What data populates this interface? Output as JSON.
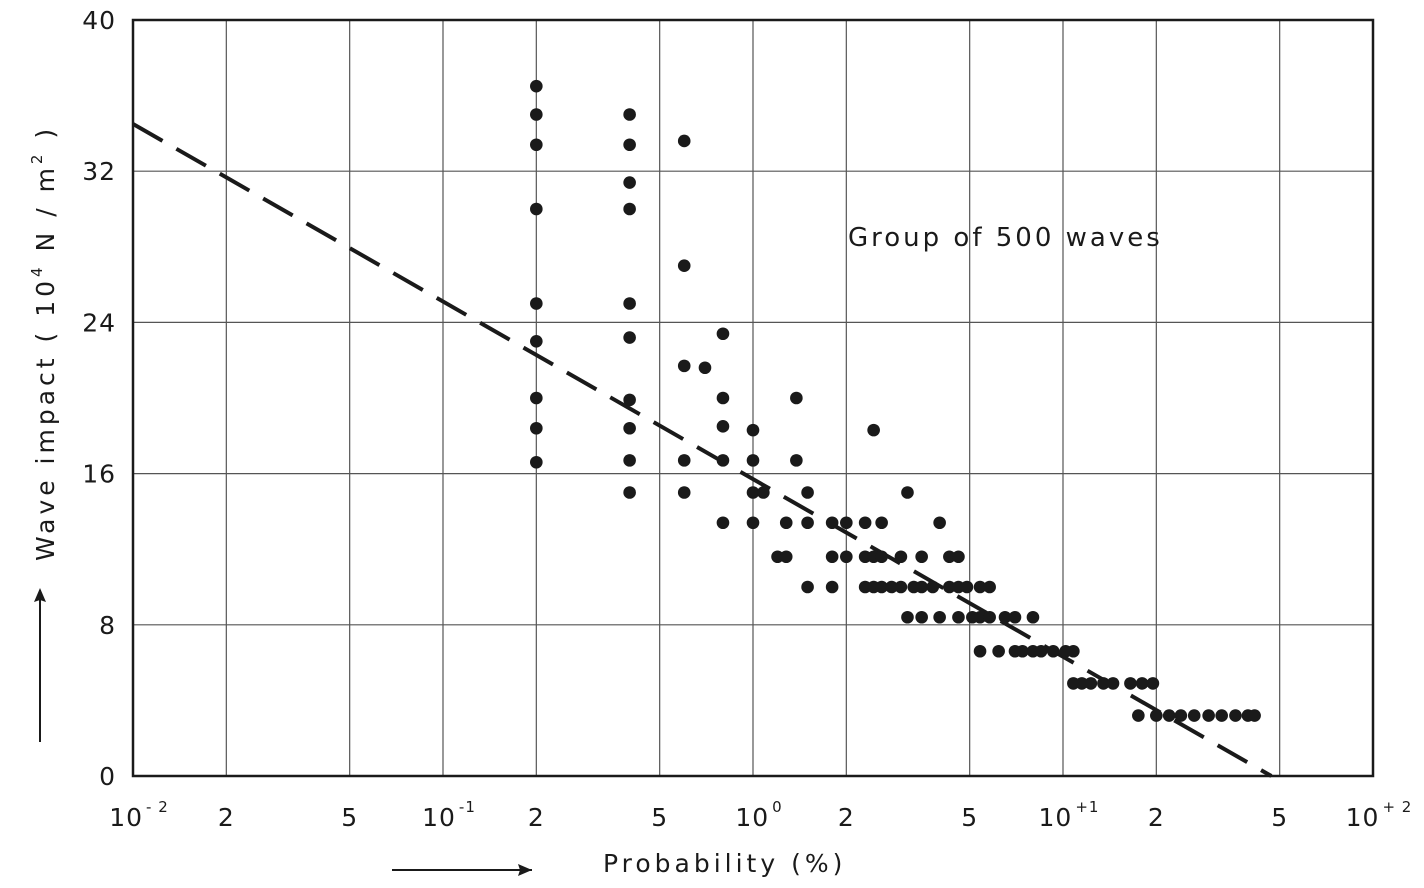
{
  "chart_data": {
    "type": "scatter",
    "title": "",
    "annotation": "Group of 500 waves",
    "xlabel": "Probability (%)",
    "ylabel": "Wave impact (10⁴ N/m²)",
    "ylabel_parts": {
      "prefix": "Wave impact ( 10",
      "exp": "4",
      "mid": " N / m",
      "exp2": "2",
      "suffix": " )"
    },
    "x_scale": "log",
    "xlim": [
      0.01,
      100
    ],
    "ylim": [
      0,
      40
    ],
    "grid": true,
    "y_ticks": [
      {
        "value": 0,
        "label": "0"
      },
      {
        "value": 8,
        "label": "8"
      },
      {
        "value": 16,
        "label": "16"
      },
      {
        "value": 24,
        "label": "24"
      },
      {
        "value": 32,
        "label": "32"
      },
      {
        "value": 40,
        "label": "40"
      }
    ],
    "x_ticks": [
      {
        "value": 0.01,
        "base": "10",
        "exp": "- 2"
      },
      {
        "value": 0.02,
        "base": "2",
        "exp": ""
      },
      {
        "value": 0.05,
        "base": "5",
        "exp": ""
      },
      {
        "value": 0.1,
        "base": "10",
        "exp": "-1"
      },
      {
        "value": 0.2,
        "base": "2",
        "exp": ""
      },
      {
        "value": 0.5,
        "base": "5",
        "exp": ""
      },
      {
        "value": 1,
        "base": "10",
        "exp": "0"
      },
      {
        "value": 2,
        "base": "2",
        "exp": ""
      },
      {
        "value": 5,
        "base": "5",
        "exp": ""
      },
      {
        "value": 10,
        "base": "10",
        "exp": "+1"
      },
      {
        "value": 20,
        "base": "2",
        "exp": ""
      },
      {
        "value": 50,
        "base": "5",
        "exp": ""
      },
      {
        "value": 100,
        "base": "10",
        "exp": "+ 2"
      }
    ],
    "trend_line": {
      "style": "dashed",
      "from": [
        0.01,
        34.5
      ],
      "to": [
        47,
        0
      ]
    },
    "series": [
      {
        "points": [
          [
            0.2,
            36.5
          ],
          [
            0.2,
            35.0
          ],
          [
            0.2,
            33.4
          ],
          [
            0.2,
            30.0
          ],
          [
            0.2,
            25.0
          ],
          [
            0.2,
            23.0
          ],
          [
            0.2,
            20.0
          ],
          [
            0.2,
            18.4
          ],
          [
            0.2,
            16.6
          ],
          [
            0.4,
            35.0
          ],
          [
            0.4,
            33.4
          ],
          [
            0.4,
            31.4
          ],
          [
            0.4,
            30.0
          ],
          [
            0.4,
            25.0
          ],
          [
            0.4,
            23.2
          ],
          [
            0.4,
            19.9
          ],
          [
            0.4,
            18.4
          ],
          [
            0.4,
            16.7
          ],
          [
            0.4,
            15.0
          ],
          [
            0.6,
            33.6
          ],
          [
            0.6,
            27.0
          ],
          [
            0.6,
            21.7
          ],
          [
            0.6,
            16.7
          ],
          [
            0.6,
            15.0
          ],
          [
            0.7,
            21.6
          ],
          [
            0.8,
            23.4
          ],
          [
            0.8,
            20.0
          ],
          [
            0.8,
            18.5
          ],
          [
            0.8,
            16.7
          ],
          [
            0.8,
            13.4
          ],
          [
            1.0,
            18.3
          ],
          [
            1.0,
            16.7
          ],
          [
            1.0,
            15.0
          ],
          [
            1.0,
            13.4
          ],
          [
            1.08,
            15.0
          ],
          [
            1.2,
            11.6
          ],
          [
            1.28,
            11.6
          ],
          [
            1.28,
            13.4
          ],
          [
            1.38,
            20.0
          ],
          [
            1.38,
            16.7
          ],
          [
            1.5,
            15.0
          ],
          [
            1.5,
            13.4
          ],
          [
            1.5,
            10.0
          ],
          [
            1.8,
            13.4
          ],
          [
            1.8,
            11.6
          ],
          [
            1.8,
            10.0
          ],
          [
            2.0,
            13.4
          ],
          [
            2.0,
            11.6
          ],
          [
            2.3,
            13.4
          ],
          [
            2.3,
            11.6
          ],
          [
            2.3,
            10.0
          ],
          [
            2.45,
            18.3
          ],
          [
            2.45,
            11.6
          ],
          [
            2.45,
            10.0
          ],
          [
            2.6,
            13.4
          ],
          [
            2.6,
            11.6
          ],
          [
            2.6,
            10.0
          ],
          [
            2.8,
            10.0
          ],
          [
            3.0,
            11.6
          ],
          [
            3.0,
            10.0
          ],
          [
            3.15,
            15.0
          ],
          [
            3.15,
            8.4
          ],
          [
            3.3,
            10.0
          ],
          [
            3.5,
            11.6
          ],
          [
            3.5,
            10.0
          ],
          [
            3.5,
            8.4
          ],
          [
            3.8,
            10.0
          ],
          [
            4.0,
            13.4
          ],
          [
            4.0,
            8.4
          ],
          [
            4.3,
            11.6
          ],
          [
            4.3,
            10.0
          ],
          [
            4.6,
            11.6
          ],
          [
            4.6,
            10.0
          ],
          [
            4.6,
            8.4
          ],
          [
            4.9,
            10.0
          ],
          [
            5.1,
            8.4
          ],
          [
            5.4,
            10.0
          ],
          [
            5.4,
            8.4
          ],
          [
            5.4,
            6.6
          ],
          [
            5.8,
            10.0
          ],
          [
            5.8,
            8.4
          ],
          [
            6.2,
            6.6
          ],
          [
            6.5,
            8.4
          ],
          [
            7.0,
            8.4
          ],
          [
            7.0,
            6.6
          ],
          [
            7.4,
            6.6
          ],
          [
            8.0,
            8.4
          ],
          [
            8.0,
            6.6
          ],
          [
            8.5,
            6.6
          ],
          [
            9.3,
            6.6
          ],
          [
            10.2,
            6.6
          ],
          [
            10.8,
            6.6
          ],
          [
            10.8,
            4.9
          ],
          [
            11.5,
            4.9
          ],
          [
            12.3,
            4.9
          ],
          [
            13.5,
            4.9
          ],
          [
            14.5,
            4.9
          ],
          [
            16.5,
            4.9
          ],
          [
            18.0,
            4.9
          ],
          [
            19.5,
            4.9
          ],
          [
            17.5,
            3.2
          ],
          [
            20.0,
            3.2
          ],
          [
            22.0,
            3.2
          ],
          [
            24.0,
            3.2
          ],
          [
            26.5,
            3.2
          ],
          [
            29.5,
            3.2
          ],
          [
            32.5,
            3.2
          ],
          [
            36.0,
            3.2
          ],
          [
            39.5,
            3.2
          ],
          [
            41.5,
            3.2
          ]
        ]
      }
    ]
  }
}
